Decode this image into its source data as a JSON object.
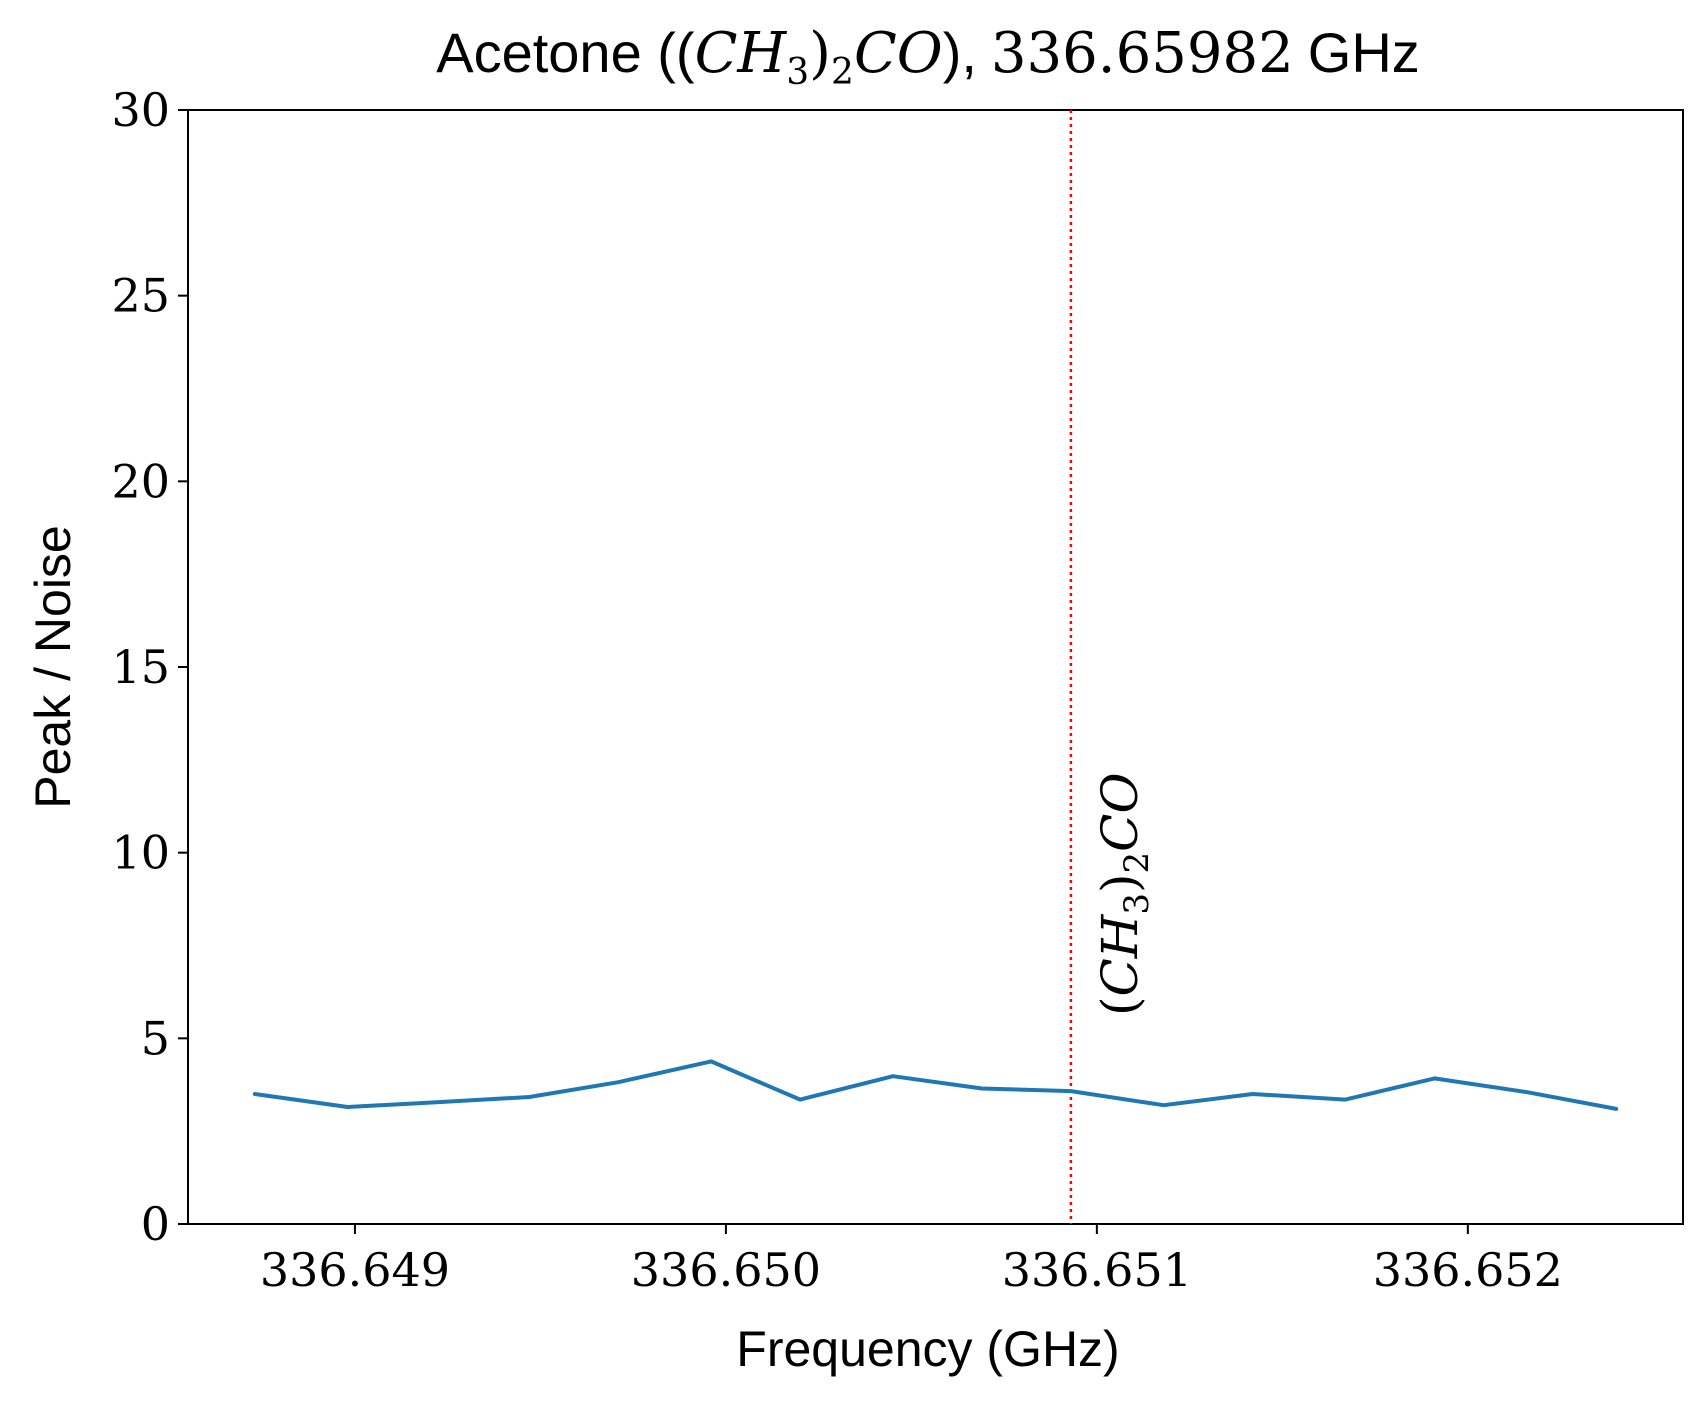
{
  "chart_data": {
    "type": "line",
    "title": "Acetone ((CH3)2CO), 336.65982 GHz",
    "title_parts": {
      "prefix": "Acetone ((",
      "math_main": "CH",
      "math_sub": "3",
      "math_close": ")",
      "math_sub2": "2",
      "math_tail": "CO",
      "suffix": "),",
      "frequency": "336.65982",
      "unit": "GHz"
    },
    "xlabel": "Frequency (GHz)",
    "ylabel": "Peak / Noise",
    "xlim": [
      336.64855,
      336.65258
    ],
    "ylim": [
      0,
      30
    ],
    "xticks": [
      336.649,
      336.65,
      336.651,
      336.652
    ],
    "xtick_labels": [
      "336.649",
      "336.650",
      "336.651",
      "336.652"
    ],
    "yticks": [
      0,
      5,
      10,
      15,
      20,
      25,
      30
    ],
    "ytick_labels": [
      "0",
      "5",
      "10",
      "15",
      "20",
      "25",
      "30"
    ],
    "grid": false,
    "series": [
      {
        "color": "#1f77b4",
        "x": [
          336.64873,
          336.64898,
          336.64922,
          336.64947,
          336.64971,
          336.64996,
          336.6502,
          336.65045,
          336.65069,
          336.65093,
          336.65118,
          336.65142,
          336.65167,
          336.65191,
          336.65216,
          336.6524
        ],
        "y": [
          3.5,
          3.15,
          3.28,
          3.42,
          3.82,
          4.38,
          3.35,
          3.98,
          3.65,
          3.58,
          3.2,
          3.5,
          3.35,
          3.92,
          3.55,
          3.1
        ]
      }
    ],
    "annotation": {
      "x": 336.65093,
      "line_color": "#ff0000",
      "line_style": "dotted",
      "label_main": "CH",
      "label_sub": "3",
      "label_sub2": "2",
      "label_tail": "CO"
    }
  }
}
